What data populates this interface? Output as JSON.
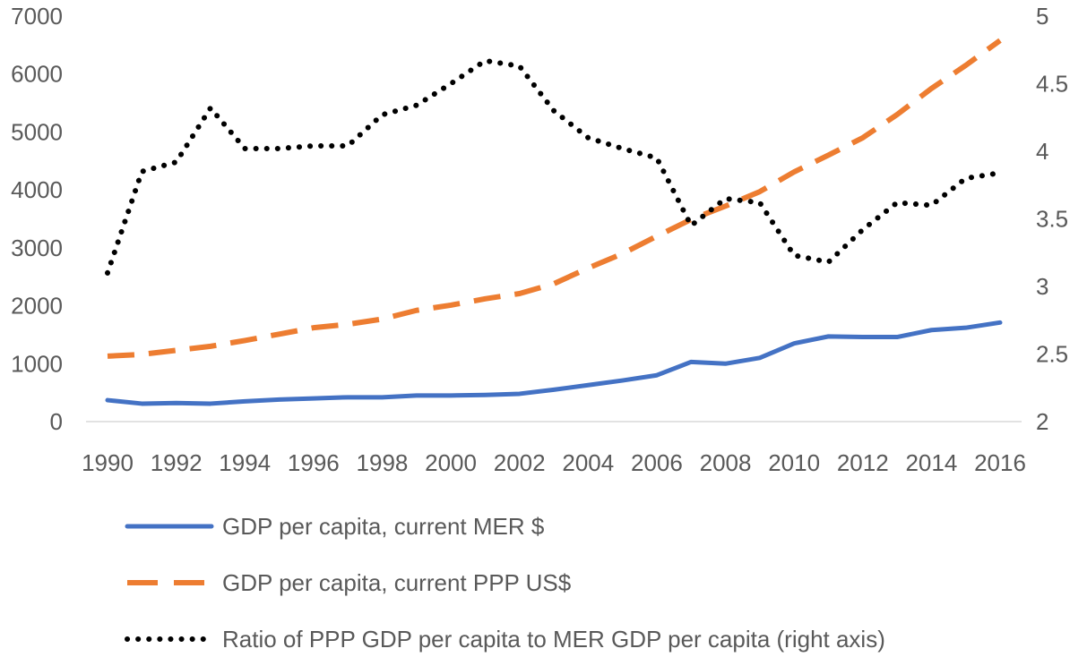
{
  "chart_data": {
    "type": "line",
    "title": "",
    "xlabel": "",
    "ylabel": "",
    "y2label": "",
    "x": [
      1990,
      1991,
      1992,
      1993,
      1994,
      1995,
      1996,
      1997,
      1998,
      1999,
      2000,
      2001,
      2002,
      2003,
      2004,
      2005,
      2006,
      2007,
      2008,
      2009,
      2010,
      2011,
      2012,
      2013,
      2014,
      2015,
      2016
    ],
    "x_tick_labels": [
      "1990",
      "1992",
      "1994",
      "1996",
      "1998",
      "2000",
      "2002",
      "2004",
      "2006",
      "2008",
      "2010",
      "2012",
      "2014",
      "2016"
    ],
    "ylim": [
      0,
      7000
    ],
    "y_tick_labels": [
      "0",
      "1000",
      "2000",
      "3000",
      "4000",
      "5000",
      "6000",
      "7000"
    ],
    "y2lim": [
      2,
      5
    ],
    "y2_tick_labels": [
      "2",
      "2.5",
      "3",
      "3.5",
      "4",
      "4.5",
      "5"
    ],
    "grid": false,
    "legend_position": "bottom",
    "series": [
      {
        "name": "GDP per capita, current MER $",
        "axis": "left",
        "color": "#4472C4",
        "style": "solid",
        "values": [
          370,
          310,
          320,
          310,
          350,
          380,
          400,
          420,
          420,
          450,
          450,
          460,
          480,
          550,
          630,
          710,
          800,
          1030,
          1000,
          1100,
          1350,
          1470,
          1460,
          1460,
          1580,
          1620,
          1710
        ]
      },
      {
        "name": "GDP per capita, current PPP US$",
        "axis": "left",
        "color": "#ED7D31",
        "style": "dashed",
        "values": [
          1130,
          1160,
          1230,
          1300,
          1400,
          1510,
          1620,
          1680,
          1770,
          1920,
          2010,
          2120,
          2210,
          2380,
          2650,
          2900,
          3200,
          3490,
          3720,
          3970,
          4310,
          4600,
          4900,
          5300,
          5750,
          6150,
          6580
        ]
      },
      {
        "name": "Ratio of PPP GDP per capita to MER GDP per capita (right axis)",
        "axis": "right",
        "color": "#000000",
        "style": "dotted",
        "values": [
          3.1,
          3.85,
          3.92,
          4.32,
          4.02,
          4.02,
          4.04,
          4.04,
          4.27,
          4.34,
          4.5,
          4.67,
          4.63,
          4.3,
          4.1,
          4.02,
          3.95,
          3.45,
          3.65,
          3.62,
          3.23,
          3.18,
          3.42,
          3.62,
          3.6,
          3.8,
          3.84
        ]
      }
    ]
  }
}
